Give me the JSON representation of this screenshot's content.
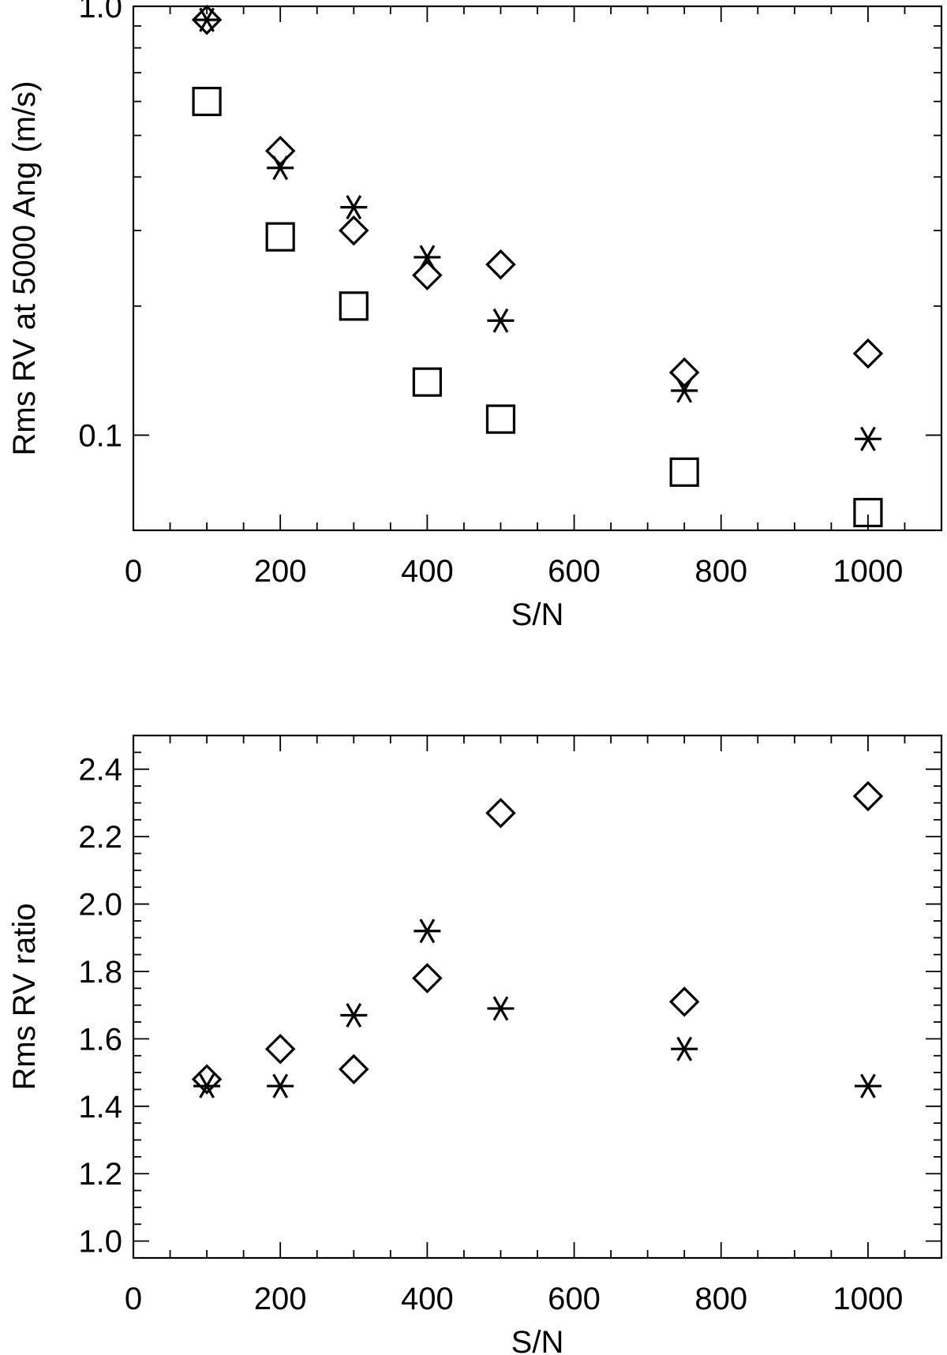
{
  "chart_data": [
    {
      "type": "scatter",
      "xlabel": "S/N",
      "ylabel": "Rms RV at 5000 Ang (m/s)",
      "xlim": [
        0,
        1100
      ],
      "ylim": [
        0.06,
        1.0
      ],
      "yscale": "log",
      "x_ticks": [
        0,
        200,
        400,
        600,
        800,
        1000
      ],
      "x_minor_step": 50,
      "y_ticks": [
        1.0,
        0.1
      ],
      "y_tick_labels": [
        "1.0",
        "0.1"
      ],
      "y_minor_ticks": [
        0.2,
        0.3,
        0.4,
        0.5,
        0.6,
        0.7,
        0.8,
        0.9
      ],
      "series": [
        {
          "marker": "square",
          "x": [
            100,
            200,
            300,
            400,
            500,
            750,
            1000
          ],
          "y": [
            0.6,
            0.29,
            0.2,
            0.133,
            0.109,
            0.082,
            0.066
          ]
        },
        {
          "marker": "diamond",
          "x": [
            100,
            200,
            300,
            400,
            500,
            750,
            1000
          ],
          "y": [
            0.93,
            0.46,
            0.3,
            0.236,
            0.25,
            0.14,
            0.155
          ]
        },
        {
          "marker": "asterisk",
          "x": [
            100,
            200,
            300,
            400,
            500,
            750,
            1000
          ],
          "y": [
            0.93,
            0.42,
            0.34,
            0.26,
            0.185,
            0.127,
            0.098
          ]
        }
      ],
      "grid": false
    },
    {
      "type": "scatter",
      "xlabel": "S/N",
      "ylabel": "Rms RV ratio",
      "xlim": [
        0,
        1100
      ],
      "ylim": [
        0.95,
        2.5
      ],
      "x_ticks": [
        0,
        200,
        400,
        600,
        800,
        1000
      ],
      "x_minor_step": 50,
      "y_ticks": [
        1.0,
        1.2,
        1.4,
        1.6,
        1.8,
        2.0,
        2.2,
        2.4
      ],
      "y_tick_labels": [
        "1.0",
        "1.2",
        "1.4",
        "1.6",
        "1.8",
        "2.0",
        "2.2",
        "2.4"
      ],
      "y_minor_step": 0.05,
      "series": [
        {
          "marker": "diamond",
          "x": [
            100,
            200,
            300,
            400,
            500,
            750,
            1000
          ],
          "y": [
            1.48,
            1.57,
            1.51,
            1.78,
            2.27,
            1.71,
            2.32
          ]
        },
        {
          "marker": "asterisk",
          "x": [
            100,
            200,
            300,
            400,
            500,
            750,
            1000
          ],
          "y": [
            1.46,
            1.46,
            1.67,
            1.92,
            1.69,
            1.57,
            1.46
          ]
        }
      ],
      "grid": false
    }
  ]
}
